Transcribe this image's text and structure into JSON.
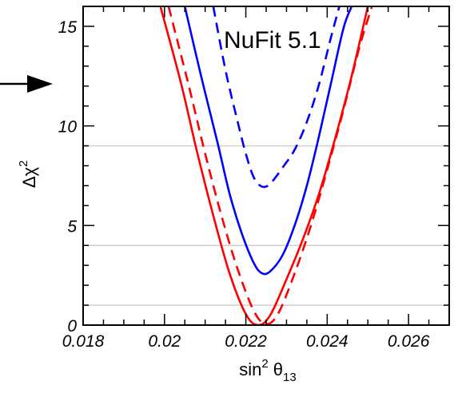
{
  "chart_data": {
    "type": "line",
    "title": "",
    "annotation": "NuFit 5.1",
    "xlabel": {
      "base": "sin",
      "sup": "2",
      "symbol": "θ",
      "sub": "13"
    },
    "ylabel": {
      "base": "Δχ",
      "sup": "2"
    },
    "xlim": [
      0.018,
      0.027
    ],
    "ylim": [
      0,
      16
    ],
    "x_ticks": [
      {
        "value": 0.018,
        "label": "0.018"
      },
      {
        "value": 0.02,
        "label": "0.02"
      },
      {
        "value": 0.022,
        "label": "0.022"
      },
      {
        "value": 0.024,
        "label": "0.024"
      },
      {
        "value": 0.026,
        "label": "0.026"
      }
    ],
    "y_ticks": [
      {
        "value": 0,
        "label": "0"
      },
      {
        "value": 5,
        "label": "5"
      },
      {
        "value": 10,
        "label": "10"
      },
      {
        "value": 15,
        "label": "15"
      }
    ],
    "reference_lines": [
      1,
      4,
      9
    ],
    "series": [
      {
        "color": "#ff0000",
        "dash": "solid",
        "x": [
          0.0199,
          0.0204,
          0.0208,
          0.0212,
          0.0216,
          0.022,
          0.0223,
          0.0226,
          0.023,
          0.0234,
          0.0238,
          0.0242,
          0.0246,
          0.025
        ],
        "y": [
          16.0,
          12.2,
          8.7,
          5.5,
          2.6,
          0.55,
          0.0,
          0.5,
          2.3,
          4.3,
          6.6,
          9.4,
          12.5,
          16.0
        ]
      },
      {
        "color": "#ff0000",
        "dash": "dashed",
        "x": [
          0.0201,
          0.0206,
          0.021,
          0.0214,
          0.0218,
          0.0222,
          0.0225,
          0.0228,
          0.0232,
          0.0236,
          0.024,
          0.0244,
          0.0248,
          0.0251
        ],
        "y": [
          16.0,
          12.0,
          8.6,
          5.5,
          2.8,
          0.7,
          0.05,
          0.6,
          2.6,
          5.0,
          7.8,
          10.8,
          14.0,
          16.0
        ]
      },
      {
        "color": "#0000ff",
        "dash": "solid",
        "x": [
          0.0205,
          0.0209,
          0.0213,
          0.0216,
          0.0219,
          0.0222,
          0.0224,
          0.0226,
          0.0229,
          0.0232,
          0.0235,
          0.0238,
          0.0241,
          0.0244,
          0.0246
        ],
        "y": [
          16.0,
          12.5,
          9.2,
          6.6,
          4.6,
          3.1,
          2.6,
          2.7,
          3.5,
          5.0,
          7.0,
          9.5,
          12.2,
          14.9,
          16.0
        ]
      },
      {
        "color": "#0000ff",
        "dash": "dashed",
        "x": [
          0.0212,
          0.0215,
          0.0218,
          0.022,
          0.0222,
          0.0224,
          0.0226,
          0.0229,
          0.0232,
          0.0235,
          0.0238,
          0.0241,
          0.0243
        ],
        "y": [
          16.0,
          12.8,
          10.2,
          8.6,
          7.4,
          6.95,
          7.1,
          7.9,
          8.8,
          10.2,
          12.1,
          14.5,
          16.0
        ]
      }
    ],
    "grid": false
  }
}
